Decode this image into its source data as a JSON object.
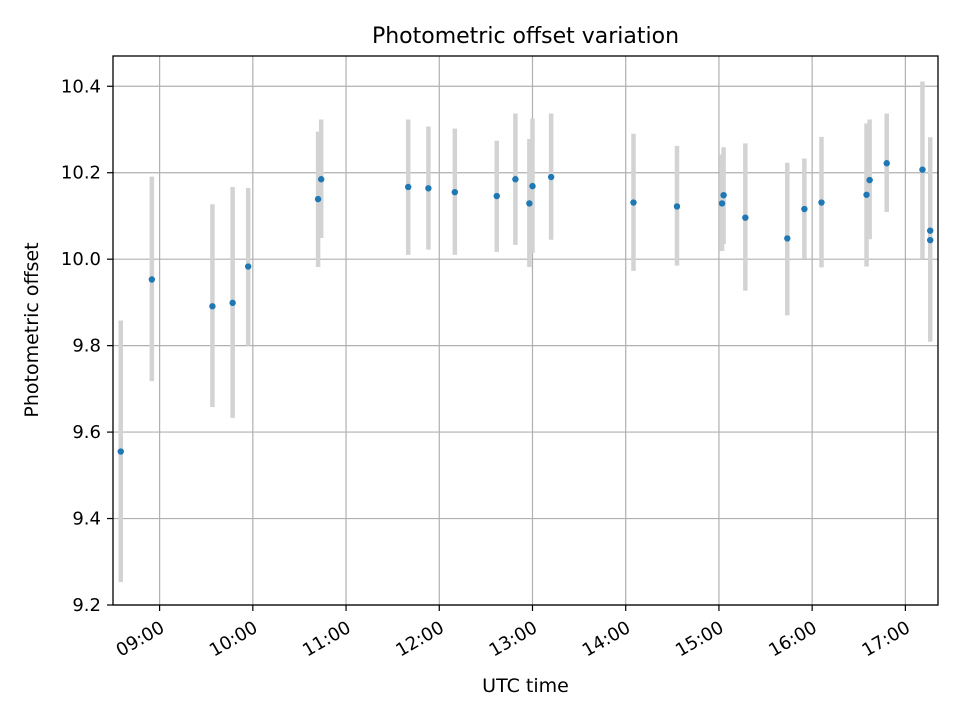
{
  "chart_data": {
    "type": "scatter",
    "title": "Photometric offset variation",
    "xlabel": "UTC time",
    "ylabel": "Photometric offset",
    "xlim": [
      "08:30",
      "17:21"
    ],
    "ylim": [
      9.2,
      10.47
    ],
    "grid": true,
    "x_ticks": [
      "09:00",
      "10:00",
      "11:00",
      "12:00",
      "13:00",
      "14:00",
      "15:00",
      "16:00",
      "17:00"
    ],
    "y_ticks": [
      "9.2",
      "9.4",
      "9.6",
      "9.8",
      "10.0",
      "10.2",
      "10.4"
    ],
    "point_color": "#1f77b4",
    "errorbar_color": "#d3d3d3",
    "series": [
      {
        "points": [
          {
            "x": "08:35",
            "y": 9.555,
            "ylow": 9.253,
            "yhigh": 9.858
          },
          {
            "x": "08:55",
            "y": 9.953,
            "ylow": 9.718,
            "yhigh": 10.191
          },
          {
            "x": "09:34",
            "y": 9.891,
            "ylow": 9.658,
            "yhigh": 10.127
          },
          {
            "x": "09:47",
            "y": 9.899,
            "ylow": 9.633,
            "yhigh": 10.167
          },
          {
            "x": "09:57",
            "y": 9.983,
            "ylow": 9.8,
            "yhigh": 10.165
          },
          {
            "x": "10:42",
            "y": 10.139,
            "ylow": 9.982,
            "yhigh": 10.295
          },
          {
            "x": "10:44",
            "y": 10.185,
            "ylow": 10.049,
            "yhigh": 10.323
          },
          {
            "x": "11:40",
            "y": 10.167,
            "ylow": 10.01,
            "yhigh": 10.323
          },
          {
            "x": "11:53",
            "y": 10.164,
            "ylow": 10.022,
            "yhigh": 10.307
          },
          {
            "x": "12:10",
            "y": 10.155,
            "ylow": 10.01,
            "yhigh": 10.302
          },
          {
            "x": "12:37",
            "y": 10.146,
            "ylow": 10.017,
            "yhigh": 10.274
          },
          {
            "x": "12:49",
            "y": 10.185,
            "ylow": 10.033,
            "yhigh": 10.337
          },
          {
            "x": "12:58",
            "y": 10.129,
            "ylow": 9.982,
            "yhigh": 10.278
          },
          {
            "x": "13:00",
            "y": 10.169,
            "ylow": 10.015,
            "yhigh": 10.325
          },
          {
            "x": "13:12",
            "y": 10.19,
            "ylow": 10.045,
            "yhigh": 10.337
          },
          {
            "x": "14:05",
            "y": 10.131,
            "ylow": 9.973,
            "yhigh": 10.29
          },
          {
            "x": "14:33",
            "y": 10.122,
            "ylow": 9.985,
            "yhigh": 10.262
          },
          {
            "x": "15:02",
            "y": 10.129,
            "ylow": 10.019,
            "yhigh": 10.242
          },
          {
            "x": "15:03",
            "y": 10.148,
            "ylow": 10.035,
            "yhigh": 10.259
          },
          {
            "x": "15:17",
            "y": 10.096,
            "ylow": 9.927,
            "yhigh": 10.268
          },
          {
            "x": "15:44",
            "y": 10.048,
            "ylow": 9.87,
            "yhigh": 10.223
          },
          {
            "x": "15:55",
            "y": 10.116,
            "ylow": 10.001,
            "yhigh": 10.233
          },
          {
            "x": "16:06",
            "y": 10.131,
            "ylow": 9.981,
            "yhigh": 10.283
          },
          {
            "x": "16:35",
            "y": 10.149,
            "ylow": 9.983,
            "yhigh": 10.314
          },
          {
            "x": "16:37",
            "y": 10.183,
            "ylow": 10.046,
            "yhigh": 10.323
          },
          {
            "x": "16:48",
            "y": 10.222,
            "ylow": 10.109,
            "yhigh": 10.337
          },
          {
            "x": "17:11",
            "y": 10.207,
            "ylow": 10.001,
            "yhigh": 10.411
          },
          {
            "x": "17:16",
            "y": 10.066,
            "ylow": 10.066,
            "yhigh": 10.066
          },
          {
            "x": "17:16",
            "y": 10.044,
            "ylow": 9.809,
            "yhigh": 10.282
          }
        ]
      }
    ]
  }
}
